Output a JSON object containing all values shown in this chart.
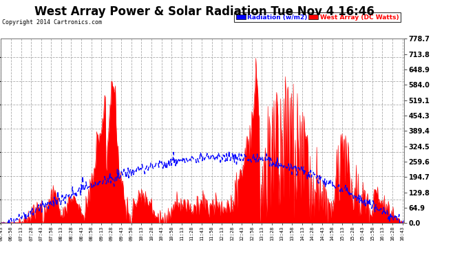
{
  "title": "West Array Power & Solar Radiation Tue Nov 4 16:46",
  "copyright": "Copyright 2014 Cartronics.com",
  "legend_labels": [
    "Radiation (w/m2)",
    "West Array (DC Watts)"
  ],
  "ymin": 0.0,
  "ymax": 778.7,
  "yticks": [
    0.0,
    64.9,
    129.8,
    194.7,
    259.6,
    324.5,
    389.4,
    454.3,
    519.1,
    584.0,
    648.9,
    713.8,
    778.7
  ],
  "xstart_minutes": 403,
  "xend_minutes": 1005,
  "xtick_interval_minutes": 15,
  "bg_color": "#ffffff",
  "plot_bg_color": "#ffffff",
  "grid_color": "#aaaaaa",
  "title_fontsize": 12,
  "copyright_fontsize": 6,
  "label_fontsize": 7,
  "rad_color": "blue",
  "power_color": "red"
}
